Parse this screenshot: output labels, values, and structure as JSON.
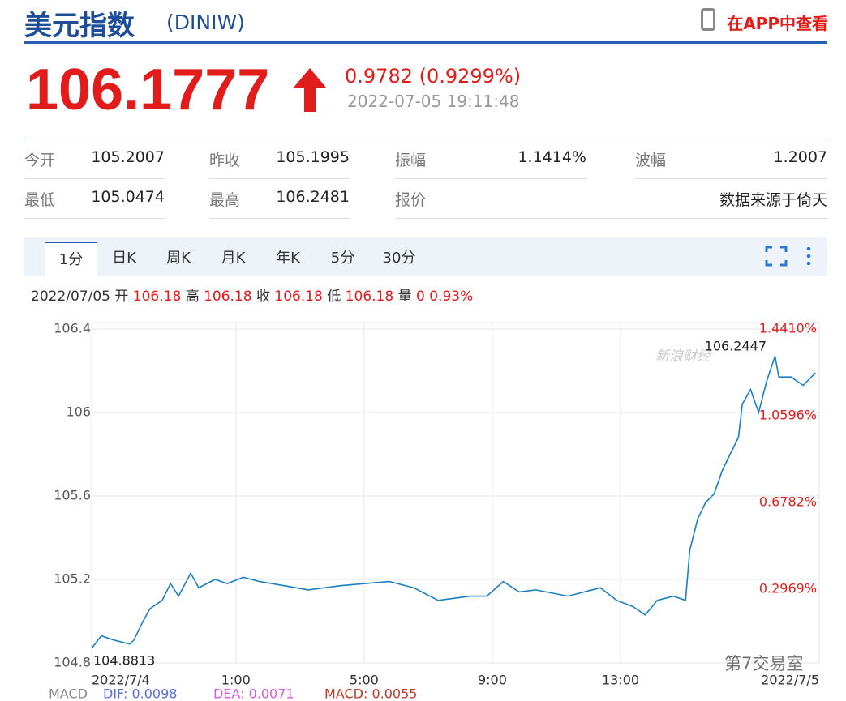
{
  "header": {
    "title": "美元指数",
    "code": "(DINIW)",
    "app_link": "在APP中查看"
  },
  "quote": {
    "price": "106.1777",
    "change": "0.9782 (0.9299%)",
    "time": "2022-07-05 19:11:48"
  },
  "stats": [
    [
      "今开",
      "105.2007",
      "昨收",
      "105.1995",
      "振幅",
      "1.1414%",
      "波幅",
      "1.2007"
    ],
    [
      "最低",
      "105.0474",
      "最高",
      "106.2481",
      "报价",
      "数据来源于倚天"
    ]
  ],
  "tabs": [
    "1分",
    "日K",
    "周K",
    "月K",
    "年K",
    "5分",
    "30分"
  ],
  "summary": {
    "date": "2022/07/05",
    "items": [
      {
        "label": "开",
        "value": "106.18"
      },
      {
        "label": "高",
        "value": "106.18"
      },
      {
        "label": "收",
        "value": "106.18"
      },
      {
        "label": "低",
        "value": "106.18"
      },
      {
        "label": "量",
        "value": "0"
      }
    ],
    "pct": "0.93%"
  },
  "chart_data": {
    "type": "line",
    "color": "#1a7fc1",
    "grid": true,
    "x": [
      0,
      0.3,
      0.68,
      1.19,
      1.32,
      1.57,
      1.82,
      2.2,
      2.46,
      2.71,
      3.09,
      3.34,
      3.85,
      4.23,
      4.73,
      5.24,
      6.0,
      6.76,
      7.77,
      8.53,
      9.29,
      10.05,
      10.81,
      11.32,
      11.82,
      12.33,
      12.84,
      13.34,
      13.85,
      14.86,
      15.87,
      16.38,
      16.89,
      17.27,
      17.65,
      18.15,
      18.53,
      18.66,
      18.91,
      19.16,
      19.42,
      19.67,
      19.92,
      20.18,
      20.3,
      20.56,
      20.81,
      21.06,
      21.32,
      21.44,
      21.82,
      22.2,
      22.58
    ],
    "values": [
      104.87,
      104.93,
      104.91,
      104.89,
      104.91,
      104.99,
      105.06,
      105.1,
      105.18,
      105.12,
      105.23,
      105.16,
      105.2,
      105.18,
      105.21,
      105.19,
      105.17,
      105.15,
      105.17,
      105.18,
      105.19,
      105.16,
      105.1,
      105.11,
      105.12,
      105.12,
      105.19,
      105.14,
      105.15,
      105.12,
      105.16,
      105.1,
      105.07,
      105.03,
      105.1,
      105.12,
      105.1,
      105.34,
      105.49,
      105.57,
      105.61,
      105.72,
      105.8,
      105.88,
      106.04,
      106.11,
      106.0,
      106.15,
      106.27,
      106.17,
      106.17,
      106.13,
      106.19
    ],
    "xlim": [
      0,
      22.7
    ],
    "xticks": [
      {
        "value": 0,
        "label": "2022/7/4"
      },
      {
        "value": 4.5,
        "label": "1:00"
      },
      {
        "value": 8.5,
        "label": "5:00"
      },
      {
        "value": 12.5,
        "label": "9:00"
      },
      {
        "value": 16.5,
        "label": "13:00"
      },
      {
        "value": 22.7,
        "label": "2022/7/5"
      }
    ],
    "ylim": [
      104.8,
      106.4
    ],
    "yticks": [
      104.8,
      105.2,
      105.6,
      106,
      106.4
    ],
    "y2lim": [
      -0.0275,
      1.441
    ],
    "y2ticks": [
      {
        "value": 0.2969,
        "label": "0.2969%"
      },
      {
        "value": 0.6782,
        "label": "0.6782%"
      },
      {
        "value": 1.0596,
        "label": "1.0596%"
      },
      {
        "value": 1.441,
        "label": "1.4410%"
      }
    ],
    "max_label": "106.2447",
    "min_label": "104.8813"
  },
  "macd": [
    "MACD",
    "DIF: 0.0098",
    "DEA: 0.0071",
    "MACD: 0.0055"
  ],
  "watermarks": [
    "新浪财经",
    "第7交易室"
  ]
}
